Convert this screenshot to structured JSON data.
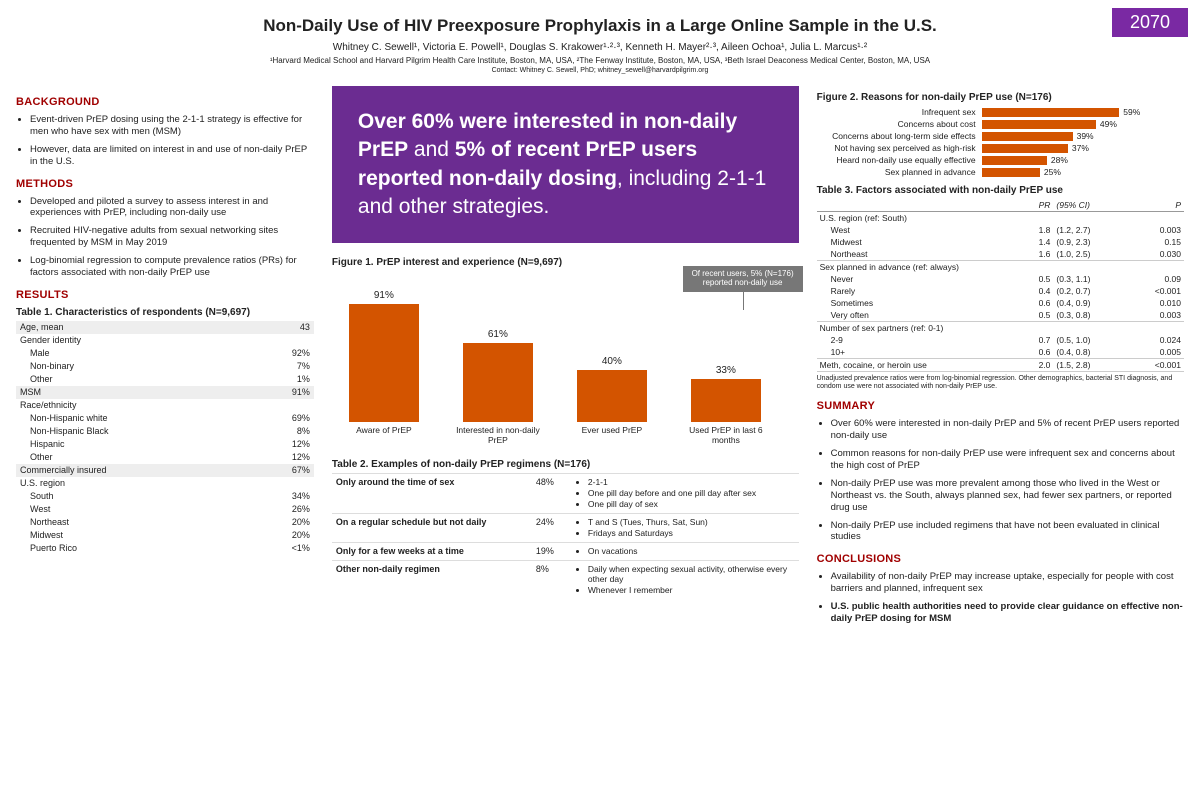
{
  "poster_number": "2070",
  "title": "Non-Daily Use of HIV Preexposure Prophylaxis in a Large Online Sample in the U.S.",
  "authors": "Whitney C. Sewell¹, Victoria E. Powell¹, Douglas S. Krakower¹·²·³, Kenneth H. Mayer²·³, Aileen Ochoa¹, Julia L. Marcus¹·²",
  "affiliations": "¹Harvard Medical School and Harvard Pilgrim Health Care Institute, Boston, MA, USA, ²The Fenway Institute, Boston, MA, USA, ³Beth Israel Deaconess Medical Center, Boston, MA, USA",
  "contact": "Contact: Whitney C. Sewell, PhD; whitney_sewell@harvardpilgrim.org",
  "sections": {
    "background": "BACKGROUND",
    "methods": "METHODS",
    "results": "RESULTS",
    "summary": "SUMMARY",
    "conclusions": "CONCLUSIONS"
  },
  "background": [
    "Event-driven PrEP dosing using the 2-1-1 strategy is effective for men who have sex with men (MSM)",
    "However, data are limited on interest in and use of non-daily PrEP in the U.S."
  ],
  "methods": [
    "Developed and piloted a survey to assess interest in and experiences with PrEP, including non-daily use",
    "Recruited HIV-negative adults from sexual networking sites frequented by MSM in May 2019",
    "Log-binomial regression to compute prevalence ratios (PRs) for factors associated with non-daily PrEP use"
  ],
  "table1": {
    "title": "Table 1. Characteristics of respondents (N=9,697)",
    "rows": [
      {
        "l": "Age, mean",
        "v": "43",
        "shade": true
      },
      {
        "l": "Gender identity",
        "v": "",
        "shade": false
      },
      {
        "l": "    Male",
        "v": "92%",
        "shade": false
      },
      {
        "l": "    Non-binary",
        "v": "7%",
        "shade": false
      },
      {
        "l": "    Other",
        "v": "1%",
        "shade": false
      },
      {
        "l": "MSM",
        "v": "91%",
        "shade": true
      },
      {
        "l": "Race/ethnicity",
        "v": "",
        "shade": false
      },
      {
        "l": "    Non-Hispanic white",
        "v": "69%",
        "shade": false
      },
      {
        "l": "    Non-Hispanic Black",
        "v": "8%",
        "shade": false
      },
      {
        "l": "    Hispanic",
        "v": "12%",
        "shade": false
      },
      {
        "l": "    Other",
        "v": "12%",
        "shade": false
      },
      {
        "l": "Commercially insured",
        "v": "67%",
        "shade": true
      },
      {
        "l": "U.S. region",
        "v": "",
        "shade": false
      },
      {
        "l": "    South",
        "v": "34%",
        "shade": false
      },
      {
        "l": "    West",
        "v": "26%",
        "shade": false
      },
      {
        "l": "    Northeast",
        "v": "20%",
        "shade": false
      },
      {
        "l": "    Midwest",
        "v": "20%",
        "shade": false
      },
      {
        "l": "    Puerto Rico",
        "v": "<1%",
        "shade": false
      }
    ]
  },
  "hero_html": "<b>Over 60% were interested in non-daily PrEP</b> and <b>5% of recent PrEP users reported non-daily dosing</b>, including 2-1-1 and other strategies.",
  "fig1": {
    "title": "Figure 1. PrEP interest and experience (N=9,697)",
    "callout": "Of recent users, 5% (N=176) reported non-daily use",
    "type": "bar",
    "bar_color": "#d35400",
    "max": 100,
    "bars": [
      {
        "cat": "Aware of PrEP",
        "val": 91,
        "label": "91%"
      },
      {
        "cat": "Interested in non-daily PrEP",
        "val": 61,
        "label": "61%"
      },
      {
        "cat": "Ever used PrEP",
        "val": 40,
        "label": "40%"
      },
      {
        "cat": "Used PrEP in last 6 months",
        "val": 33,
        "label": "33%"
      }
    ]
  },
  "table2": {
    "title": "Table 2. Examples of non-daily PrEP regimens (N=176)",
    "rows": [
      {
        "cat": "Only around the time of sex",
        "pct": "48%",
        "ex": [
          "2-1-1",
          "One pill day before and one pill day after sex",
          "One pill day of sex"
        ]
      },
      {
        "cat": "On a regular schedule but not daily",
        "pct": "24%",
        "ex": [
          "T and S (Tues, Thurs, Sat, Sun)",
          "Fridays and Saturdays"
        ]
      },
      {
        "cat": "Only for a few weeks at a time",
        "pct": "19%",
        "ex": [
          "On vacations"
        ]
      },
      {
        "cat": "Other non-daily regimen",
        "pct": "8%",
        "ex": [
          "Daily when expecting sexual activity, otherwise every other day",
          "Whenever I remember"
        ]
      }
    ]
  },
  "fig2": {
    "title": "Figure 2. Reasons for non-daily PrEP use (N=176)",
    "type": "hbar",
    "bar_color": "#d35400",
    "max": 60,
    "bars": [
      {
        "l": "Infrequent sex",
        "v": 59,
        "t": "59%"
      },
      {
        "l": "Concerns about cost",
        "v": 49,
        "t": "49%"
      },
      {
        "l": "Concerns about long-term side effects",
        "v": 39,
        "t": "39%"
      },
      {
        "l": "Not having sex perceived as high-risk",
        "v": 37,
        "t": "37%"
      },
      {
        "l": "Heard non-daily use equally effective",
        "v": 28,
        "t": "28%"
      },
      {
        "l": "Sex planned in advance",
        "v": 25,
        "t": "25%"
      }
    ]
  },
  "table3": {
    "title": "Table 3. Factors associated with non-daily PrEP use",
    "header": [
      "",
      "PR",
      "(95% CI)",
      "P"
    ],
    "groups": [
      {
        "name": "U.S. region (ref: South)",
        "rows": [
          {
            "l": "West",
            "pr": "1.8",
            "ci": "(1.2, 2.7)",
            "p": "0.003"
          },
          {
            "l": "Midwest",
            "pr": "1.4",
            "ci": "(0.9, 2.3)",
            "p": "0.15"
          },
          {
            "l": "Northeast",
            "pr": "1.6",
            "ci": "(1.0, 2.5)",
            "p": "0.030"
          }
        ]
      },
      {
        "name": "Sex planned in advance (ref: always)",
        "rows": [
          {
            "l": "Never",
            "pr": "0.5",
            "ci": "(0.3, 1.1)",
            "p": "0.09"
          },
          {
            "l": "Rarely",
            "pr": "0.4",
            "ci": "(0.2, 0.7)",
            "p": "<0.001"
          },
          {
            "l": "Sometimes",
            "pr": "0.6",
            "ci": "(0.4, 0.9)",
            "p": "0.010"
          },
          {
            "l": "Very often",
            "pr": "0.5",
            "ci": "(0.3, 0.8)",
            "p": "0.003"
          }
        ]
      },
      {
        "name": "Number of sex partners (ref: 0-1)",
        "rows": [
          {
            "l": "2-9",
            "pr": "0.7",
            "ci": "(0.5, 1.0)",
            "p": "0.024"
          },
          {
            "l": "10+",
            "pr": "0.6",
            "ci": "(0.4, 0.8)",
            "p": "0.005"
          }
        ]
      },
      {
        "name": "Meth, cocaine, or heroin use",
        "single": true,
        "rows": [
          {
            "l": "",
            "pr": "2.0",
            "ci": "(1.5, 2.8)",
            "p": "<0.001"
          }
        ]
      }
    ],
    "footnote": "Unadjusted prevalence ratios were from log-binomial regression. Other demographics, bacterial STI diagnosis, and condom use were not associated with non-daily PrEP use."
  },
  "summary": [
    "Over 60% were interested in non-daily PrEP and 5% of recent PrEP users reported non-daily use",
    "Common reasons for non-daily PrEP use were infrequent sex and concerns about the high cost of PrEP",
    "Non-daily PrEP use was more prevalent among those who lived in the West or Northeast vs. the South, always planned sex, had fewer sex partners, or reported drug use",
    "Non-daily PrEP use included regimens that have not been evaluated in clinical studies"
  ],
  "conclusions": [
    "Availability of non-daily PrEP may increase uptake, especially for people with cost barriers and planned, infrequent sex",
    "U.S. public health authorities need to provide clear guidance on effective non-daily PrEP dosing for MSM"
  ],
  "colors": {
    "accent": "#6b2c91",
    "section": "#a00000",
    "bar": "#d35400"
  }
}
